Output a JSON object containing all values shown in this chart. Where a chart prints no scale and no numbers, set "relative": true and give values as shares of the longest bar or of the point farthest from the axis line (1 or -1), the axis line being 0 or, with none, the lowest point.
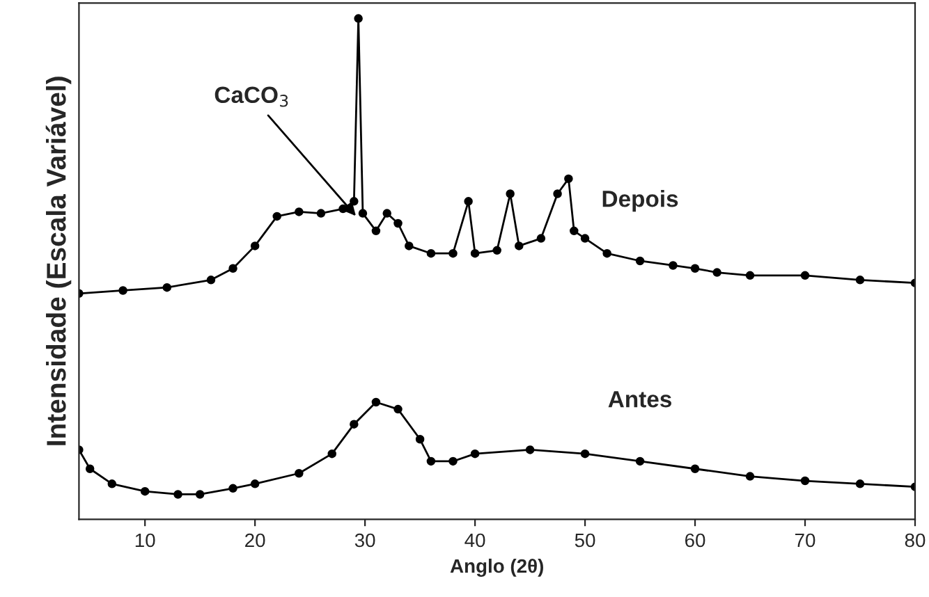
{
  "chart_data": {
    "type": "line",
    "xlabel": "Anglo (2θ)",
    "ylabel": "Intensidade (Escala Variável)",
    "relative": true,
    "marker": "circle",
    "line_style": "solid",
    "legend": false,
    "grid": false,
    "tick_labels": "x",
    "xlim": [
      4,
      80
    ],
    "xticks": [
      10,
      20,
      30,
      40,
      50,
      60,
      70,
      80
    ],
    "annotations": [
      {
        "text": "CaCO$_{3}$",
        "x": 29.4,
        "y": 0.6
      }
    ],
    "series": [
      {
        "name": "Depois",
        "color": "#000000",
        "x": [
          4,
          8,
          12,
          16,
          18,
          20,
          22,
          24,
          26,
          28,
          29,
          29.4,
          29.8,
          31,
          32,
          33,
          34,
          36,
          38,
          39.4,
          40,
          42,
          43.2,
          44,
          46,
          47.5,
          48.5,
          49,
          50,
          52,
          55,
          58,
          60,
          62,
          65,
          70,
          75,
          80
        ],
        "values": [
          0.451,
          0.457,
          0.463,
          0.478,
          0.501,
          0.546,
          0.605,
          0.614,
          0.611,
          0.62,
          0.635,
          1,
          0.611,
          0.576,
          0.611,
          0.591,
          0.546,
          0.531,
          0.531,
          0.635,
          0.531,
          0.537,
          0.65,
          0.546,
          0.561,
          0.65,
          0.68,
          0.576,
          0.561,
          0.531,
          0.516,
          0.507,
          0.501,
          0.493,
          0.487,
          0.487,
          0.478,
          0.472
        ]
      },
      {
        "name": "Antes",
        "color": "#000000",
        "x": [
          4,
          5,
          7,
          10,
          13,
          15,
          18,
          20,
          24,
          27,
          29,
          31,
          33,
          35,
          36,
          38,
          40,
          45,
          50,
          55,
          60,
          65,
          70,
          75,
          80
        ],
        "values": [
          0.139,
          0.101,
          0.071,
          0.056,
          0.05,
          0.05,
          0.062,
          0.071,
          0.092,
          0.131,
          0.19,
          0.234,
          0.22,
          0.16,
          0.116,
          0.116,
          0.131,
          0.139,
          0.131,
          0.116,
          0.101,
          0.086,
          0.077,
          0.071,
          0.065
        ]
      }
    ]
  }
}
